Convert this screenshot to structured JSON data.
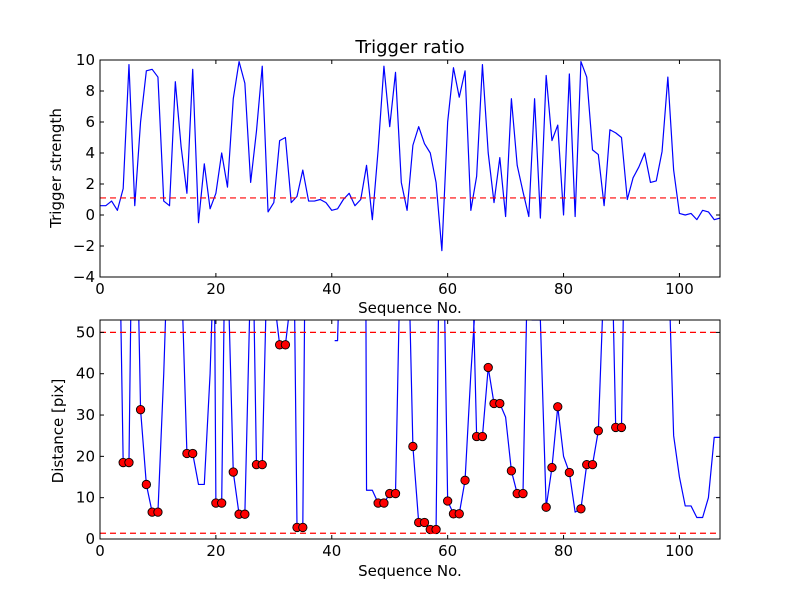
{
  "chart_data": [
    {
      "type": "line",
      "title": "Trigger ratio",
      "xlabel": "Sequence No.",
      "ylabel": "Trigger strength",
      "xlim": [
        0,
        107
      ],
      "ylim": [
        -4,
        10
      ],
      "xticks": [
        0,
        20,
        40,
        60,
        80,
        100
      ],
      "yticks": [
        -4,
        -2,
        0,
        2,
        4,
        6,
        8,
        10
      ],
      "xtick_labels": [
        "0",
        "20",
        "40",
        "60",
        "80",
        "100"
      ],
      "ytick_labels": [
        "−4",
        "−2",
        "0",
        "2",
        "4",
        "6",
        "8",
        "10"
      ],
      "grid": false,
      "series": [
        {
          "color": "#0000ff",
          "style": "solid",
          "x": [
            0,
            1,
            2,
            3,
            4,
            5,
            6,
            7,
            8,
            9,
            10,
            11,
            12,
            13,
            14,
            15,
            16,
            17,
            18,
            19,
            20,
            21,
            22,
            23,
            24,
            25,
            26,
            27,
            28,
            29,
            30,
            31,
            32,
            33,
            34,
            35,
            36,
            37,
            38,
            39,
            40,
            41,
            42,
            43,
            44,
            45,
            46,
            47,
            48,
            49,
            50,
            51,
            52,
            53,
            54,
            55,
            56,
            57,
            58,
            59,
            60,
            61,
            62,
            63,
            64,
            65,
            66,
            67,
            68,
            69,
            70,
            71,
            72,
            73,
            74,
            75,
            76,
            77,
            78,
            79,
            80,
            81,
            82,
            83,
            84,
            85,
            86,
            87,
            88,
            89,
            90,
            91,
            92,
            93,
            94,
            95,
            96,
            97,
            98,
            99,
            100,
            101,
            102,
            103,
            104,
            105,
            106,
            107
          ],
          "y": [
            0.6,
            0.6,
            0.9,
            0.3,
            1.7,
            9.7,
            0.6,
            6.0,
            9.3,
            9.4,
            8.9,
            0.9,
            0.6,
            8.6,
            4.4,
            1.4,
            9.4,
            -0.5,
            3.3,
            0.4,
            1.4,
            4.0,
            1.8,
            7.5,
            9.9,
            8.5,
            2.1,
            5.4,
            9.6,
            0.2,
            0.8,
            4.8,
            5.0,
            0.8,
            1.2,
            2.9,
            0.9,
            0.9,
            1.0,
            0.8,
            0.3,
            0.4,
            1.0,
            1.4,
            0.6,
            1.0,
            3.2,
            -0.3,
            4.2,
            9.6,
            5.7,
            9.2,
            2.1,
            0.3,
            4.5,
            5.7,
            4.6,
            4.0,
            2.1,
            -2.3,
            6.0,
            9.5,
            7.6,
            9.3,
            0.3,
            2.5,
            9.7,
            4.0,
            0.8,
            3.7,
            -0.1,
            7.5,
            3.2,
            1.5,
            -0.1,
            7.5,
            -0.2,
            9.0,
            4.8,
            5.8,
            0.0,
            9.1,
            -0.1,
            9.9,
            8.9,
            4.2,
            3.9,
            0.6,
            5.5,
            5.3,
            5.0,
            1.0,
            2.4,
            3.1,
            4.0,
            2.1,
            2.2,
            4.1,
            8.9,
            2.9,
            0.1,
            0.0,
            0.1,
            -0.3,
            0.3,
            0.2,
            -0.3,
            -0.2
          ]
        },
        {
          "color": "#ff0000",
          "style": "dashed",
          "x": [
            0,
            107
          ],
          "y": [
            1.1,
            1.1
          ]
        }
      ]
    },
    {
      "type": "line",
      "title": "",
      "xlabel": "Sequence No.",
      "ylabel": "Distance [pix]",
      "xlim": [
        0,
        107
      ],
      "ylim": [
        0,
        53
      ],
      "xticks": [
        0,
        20,
        40,
        60,
        80,
        100
      ],
      "yticks": [
        0,
        10,
        20,
        30,
        40,
        50
      ],
      "xtick_labels": [
        "0",
        "20",
        "40",
        "60",
        "80",
        "100"
      ],
      "ytick_labels": [
        "0",
        "10",
        "20",
        "30",
        "40",
        "50"
      ],
      "grid": false,
      "series": [
        {
          "color": "#0000ff",
          "style": "solid",
          "segments": [
            [
              [
                3.6,
                53
              ],
              [
                4,
                18.5
              ],
              [
                5,
                18.5
              ],
              [
                5.3,
                53
              ]
            ],
            [
              [
                6.7,
                53
              ],
              [
                7,
                31.3
              ],
              [
                8,
                13.2
              ],
              [
                9,
                6.5
              ],
              [
                10,
                6.5
              ],
              [
                11,
                40
              ],
              [
                11.3,
                53
              ]
            ],
            [
              [
                14.3,
                53
              ],
              [
                15,
                20.7
              ],
              [
                16,
                20.7
              ],
              [
                17,
                13.2
              ],
              [
                18,
                13.2
              ],
              [
                19,
                40
              ],
              [
                19.3,
                53
              ]
            ],
            [
              [
                19.8,
                53
              ],
              [
                20,
                8.7
              ],
              [
                21,
                8.7
              ],
              [
                21.4,
                53
              ]
            ],
            [
              [
                22.3,
                53
              ],
              [
                23,
                16.2
              ],
              [
                24,
                6.0
              ],
              [
                25,
                6.0
              ],
              [
                25.8,
                53
              ]
            ],
            [
              [
                26.6,
                53
              ],
              [
                27,
                18.0
              ],
              [
                28,
                18.0
              ],
              [
                28.6,
                53
              ]
            ],
            [
              [
                30.5,
                53
              ],
              [
                31,
                47.0
              ],
              [
                32,
                47.0
              ],
              [
                32.5,
                53
              ]
            ],
            [
              [
                33.6,
                53
              ],
              [
                34,
                2.8
              ],
              [
                35,
                2.8
              ],
              [
                35.3,
                53
              ]
            ],
            [
              [
                40.5,
                48
              ],
              [
                41,
                48
              ],
              [
                41.1,
                53
              ]
            ],
            [
              [
                45.9,
                53
              ],
              [
                46,
                11.8
              ],
              [
                47,
                11.8
              ],
              [
                48,
                8.7
              ],
              [
                49,
                8.7
              ],
              [
                50,
                11.0
              ],
              [
                51,
                11.0
              ],
              [
                51.6,
                53
              ]
            ],
            [
              [
                53.5,
                53
              ],
              [
                54,
                22.4
              ],
              [
                55,
                4.0
              ],
              [
                56,
                4.0
              ],
              [
                57,
                2.3
              ],
              [
                58,
                2.3
              ],
              [
                58.4,
                53
              ]
            ],
            [
              [
                59.5,
                53
              ],
              [
                60,
                9.2
              ],
              [
                61,
                6.1
              ],
              [
                62,
                6.1
              ],
              [
                63,
                14.2
              ],
              [
                64,
                40
              ],
              [
                64.6,
                53
              ]
            ],
            [
              [
                64.5,
                53
              ],
              [
                65,
                24.8
              ],
              [
                66,
                24.8
              ],
              [
                67,
                41.5
              ],
              [
                68,
                32.8
              ],
              [
                69,
                32.8
              ],
              [
                70,
                29.5
              ],
              [
                71,
                16.5
              ],
              [
                72,
                11.0
              ],
              [
                73,
                11.0
              ],
              [
                73.6,
                53
              ]
            ],
            [
              [
                74.5,
                53
              ],
              [
                75,
                53
              ],
              [
                76,
                53
              ],
              [
                77,
                7.7
              ],
              [
                78,
                17.3
              ],
              [
                79,
                32.0
              ],
              [
                80,
                20.0
              ],
              [
                81,
                16.1
              ],
              [
                82,
                6.5
              ],
              [
                83,
                7.3
              ],
              [
                84,
                18.0
              ],
              [
                85,
                18.0
              ],
              [
                86,
                26.2
              ],
              [
                86.7,
                53
              ]
            ],
            [
              [
                88.6,
                53
              ],
              [
                89,
                27.0
              ],
              [
                90,
                27.0
              ],
              [
                90.3,
                53
              ]
            ],
            [
              [
                98.4,
                53
              ],
              [
                99,
                25.0
              ],
              [
                100,
                15.0
              ],
              [
                101,
                8.0
              ],
              [
                102,
                8.0
              ],
              [
                103,
                5.2
              ],
              [
                104,
                5.2
              ],
              [
                105,
                10.0
              ],
              [
                106,
                24.6
              ],
              [
                107,
                24.6
              ]
            ]
          ]
        },
        {
          "color": "#ff0000",
          "style": "markers",
          "x": [
            4,
            5,
            7,
            8,
            9,
            10,
            15,
            16,
            20,
            21,
            23,
            24,
            25,
            27,
            28,
            31,
            32,
            34,
            35,
            48,
            49,
            50,
            51,
            54,
            55,
            56,
            57,
            58,
            60,
            61,
            62,
            63,
            65,
            66,
            67,
            68,
            69,
            71,
            72,
            73,
            77,
            78,
            79,
            81,
            83,
            84,
            85,
            86,
            89,
            90
          ],
          "y": [
            18.5,
            18.5,
            31.3,
            13.2,
            6.5,
            6.5,
            20.7,
            20.7,
            8.7,
            8.7,
            16.2,
            6.0,
            6.0,
            18.0,
            18.0,
            47.0,
            47.0,
            2.8,
            2.8,
            8.7,
            8.7,
            11.0,
            11.0,
            22.4,
            4.0,
            4.0,
            2.3,
            2.3,
            9.2,
            6.1,
            6.1,
            14.2,
            24.8,
            24.8,
            41.5,
            32.8,
            32.8,
            16.5,
            11.0,
            11.0,
            7.7,
            17.3,
            32.0,
            16.1,
            7.3,
            18.0,
            18.0,
            26.2,
            27.0,
            27.0
          ]
        },
        {
          "color": "#ff0000",
          "style": "dashed",
          "x": [
            0,
            107
          ],
          "y": [
            50.0,
            50.0
          ]
        },
        {
          "color": "#ff0000",
          "style": "dashed",
          "x": [
            0,
            107
          ],
          "y": [
            1.4,
            1.4
          ]
        }
      ]
    }
  ]
}
